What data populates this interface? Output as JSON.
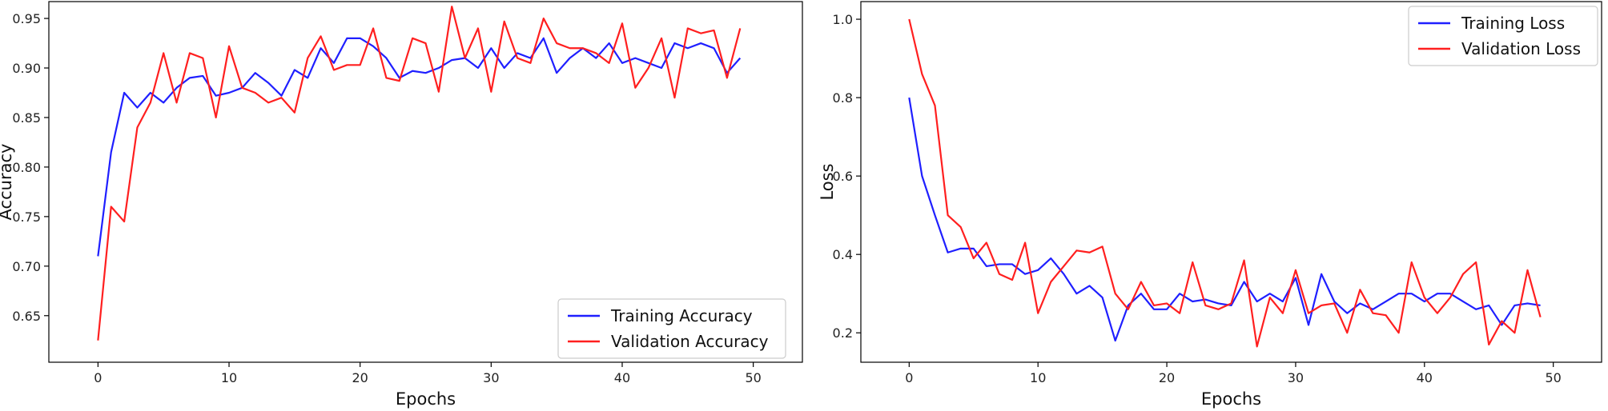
{
  "chart_data": [
    {
      "type": "line",
      "title": "",
      "xlabel": "Epochs",
      "ylabel": "Accuracy",
      "xlim": [
        -3.75,
        53.75
      ],
      "ylim": [
        0.603,
        0.967
      ],
      "xticks": [
        0,
        10,
        20,
        30,
        40,
        50
      ],
      "yticks": [
        0.65,
        0.7,
        0.75,
        0.8,
        0.85,
        0.9,
        0.95
      ],
      "grid": false,
      "legend": "lower-right",
      "x": [
        0,
        1,
        2,
        3,
        4,
        5,
        6,
        7,
        8,
        9,
        10,
        11,
        12,
        13,
        14,
        15,
        16,
        17,
        18,
        19,
        20,
        21,
        22,
        23,
        24,
        25,
        26,
        27,
        28,
        29,
        30,
        31,
        32,
        33,
        34,
        35,
        36,
        37,
        38,
        39,
        40,
        41,
        42,
        43,
        44,
        45,
        46,
        47,
        48,
        49
      ],
      "series": [
        {
          "name": "Training Accuracy",
          "color": "#1f1fff",
          "values": [
            0.71,
            0.815,
            0.875,
            0.86,
            0.875,
            0.865,
            0.88,
            0.89,
            0.892,
            0.872,
            0.875,
            0.88,
            0.895,
            0.885,
            0.872,
            0.898,
            0.89,
            0.92,
            0.905,
            0.93,
            0.93,
            0.922,
            0.91,
            0.89,
            0.897,
            0.895,
            0.9,
            0.908,
            0.91,
            0.9,
            0.92,
            0.9,
            0.915,
            0.91,
            0.93,
            0.895,
            0.91,
            0.92,
            0.91,
            0.925,
            0.905,
            0.91,
            0.905,
            0.9,
            0.925,
            0.92,
            0.925,
            0.92,
            0.895,
            0.91
          ]
        },
        {
          "name": "Validation Accuracy",
          "color": "#ff1f1f",
          "values": [
            0.625,
            0.76,
            0.745,
            0.84,
            0.865,
            0.915,
            0.865,
            0.915,
            0.91,
            0.85,
            0.922,
            0.88,
            0.875,
            0.865,
            0.87,
            0.855,
            0.91,
            0.932,
            0.898,
            0.903,
            0.903,
            0.94,
            0.89,
            0.887,
            0.93,
            0.925,
            0.876,
            0.962,
            0.91,
            0.94,
            0.876,
            0.947,
            0.91,
            0.905,
            0.95,
            0.925,
            0.92,
            0.92,
            0.915,
            0.905,
            0.945,
            0.88,
            0.9,
            0.93,
            0.87,
            0.94,
            0.935,
            0.938,
            0.89,
            0.94
          ]
        }
      ]
    },
    {
      "type": "line",
      "title": "",
      "xlabel": "Epochs",
      "ylabel": "Loss",
      "xlim": [
        -3.75,
        53.75
      ],
      "ylim": [
        0.125,
        1.045
      ],
      "xticks": [
        0,
        10,
        20,
        30,
        40,
        50
      ],
      "yticks": [
        0.2,
        0.4,
        0.6,
        0.8,
        1.0
      ],
      "grid": false,
      "legend": "top-right",
      "x": [
        0,
        1,
        2,
        3,
        4,
        5,
        6,
        7,
        8,
        9,
        10,
        11,
        12,
        13,
        14,
        15,
        16,
        17,
        18,
        19,
        20,
        21,
        22,
        23,
        24,
        25,
        26,
        27,
        28,
        29,
        30,
        31,
        32,
        33,
        34,
        35,
        36,
        37,
        38,
        39,
        40,
        41,
        42,
        43,
        44,
        45,
        46,
        47,
        48,
        49
      ],
      "series": [
        {
          "name": "Training Loss",
          "color": "#1f1fff",
          "values": [
            0.8,
            0.6,
            0.5,
            0.405,
            0.415,
            0.415,
            0.37,
            0.375,
            0.375,
            0.35,
            0.36,
            0.39,
            0.35,
            0.3,
            0.32,
            0.29,
            0.18,
            0.27,
            0.3,
            0.26,
            0.26,
            0.3,
            0.28,
            0.285,
            0.275,
            0.27,
            0.33,
            0.28,
            0.3,
            0.28,
            0.34,
            0.22,
            0.35,
            0.28,
            0.25,
            0.275,
            0.26,
            0.28,
            0.3,
            0.3,
            0.28,
            0.3,
            0.3,
            0.28,
            0.26,
            0.27,
            0.22,
            0.27,
            0.275,
            0.27
          ]
        },
        {
          "name": "Validation Loss",
          "color": "#ff1f1f",
          "values": [
            1.0,
            0.86,
            0.78,
            0.5,
            0.47,
            0.39,
            0.43,
            0.35,
            0.335,
            0.43,
            0.25,
            0.33,
            0.37,
            0.41,
            0.405,
            0.42,
            0.3,
            0.26,
            0.33,
            0.27,
            0.275,
            0.25,
            0.38,
            0.27,
            0.26,
            0.275,
            0.385,
            0.165,
            0.29,
            0.25,
            0.36,
            0.25,
            0.27,
            0.275,
            0.2,
            0.31,
            0.25,
            0.245,
            0.2,
            0.38,
            0.29,
            0.25,
            0.29,
            0.35,
            0.38,
            0.17,
            0.23,
            0.2,
            0.36,
            0.24
          ]
        }
      ]
    }
  ]
}
